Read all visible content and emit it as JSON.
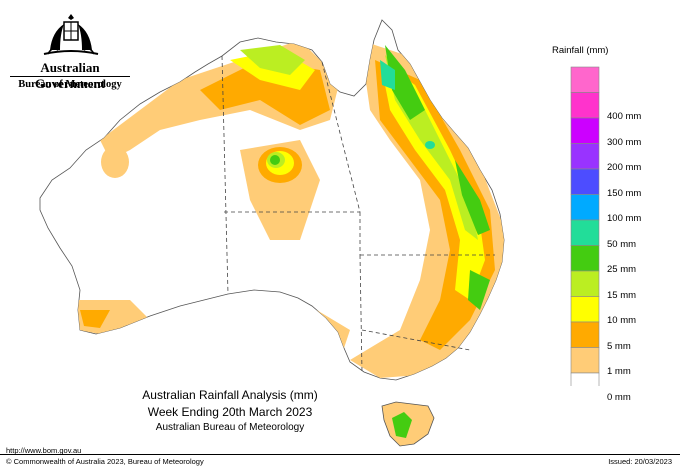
{
  "header": {
    "government": "Australian Government",
    "agency": "Bureau of Meteorology"
  },
  "legend": {
    "title": "Rainfall (mm)",
    "items": [
      {
        "label": "",
        "color": "#ff66cc"
      },
      {
        "label": "400 mm",
        "color": "#ff33cc"
      },
      {
        "label": "300 mm",
        "color": "#cc00ff"
      },
      {
        "label": "200 mm",
        "color": "#9933ff"
      },
      {
        "label": "150 mm",
        "color": "#4d4dff"
      },
      {
        "label": "100 mm",
        "color": "#00aaff"
      },
      {
        "label": "50 mm",
        "color": "#22dd99"
      },
      {
        "label": "25 mm",
        "color": "#44cc11"
      },
      {
        "label": "15 mm",
        "color": "#bbee22"
      },
      {
        "label": "10 mm",
        "color": "#ffff00"
      },
      {
        "label": "5 mm",
        "color": "#ffaa00"
      },
      {
        "label": "1 mm",
        "color": "#ffcc77"
      },
      {
        "label": "0 mm",
        "color": "#ffffff"
      }
    ]
  },
  "caption": {
    "line1": "Australian Rainfall Analysis (mm)",
    "line2": "Week Ending 20th March 2023",
    "line3": "Australian Bureau of Meteorology"
  },
  "footer": {
    "url": "http://www.bom.gov.au",
    "copyright": "© Commonwealth of Australia 2023, Bureau of Meteorology",
    "issued": "Issued: 20/03/2023"
  }
}
